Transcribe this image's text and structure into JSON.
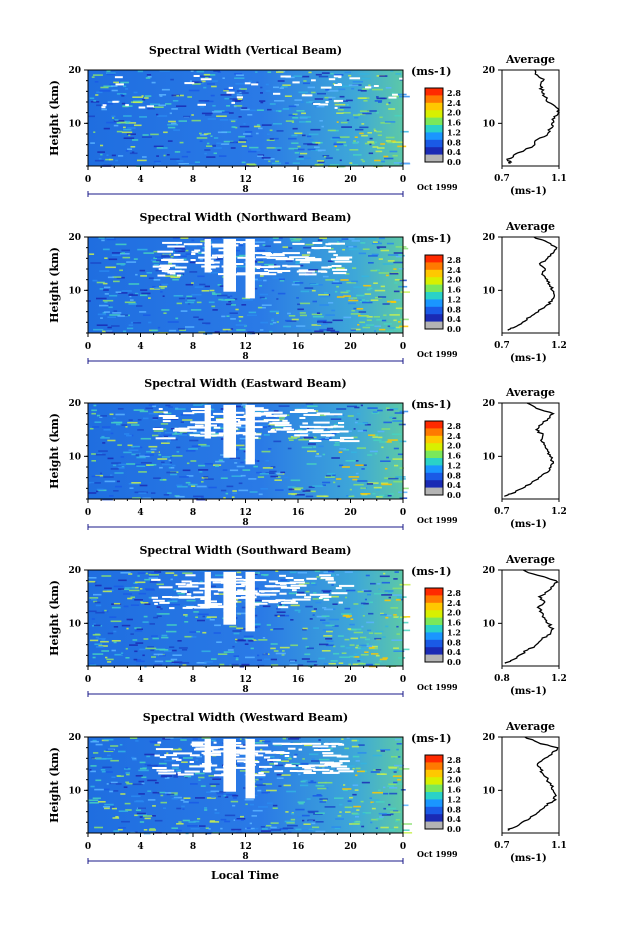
{
  "figure": {
    "xlabel": "Local Time",
    "date_label": "Oct 1999",
    "day_label": "8",
    "panels": [
      {
        "title": "Spectral Width (Vertical Beam)"
      },
      {
        "title": "Spectral Width (Northward Beam)"
      },
      {
        "title": "Spectral Width (Eastward Beam)"
      },
      {
        "title": "Spectral Width (Southward Beam)"
      },
      {
        "title": "Spectral Width (Westward Beam)"
      }
    ],
    "colorbar": {
      "unit": "(ms-1)",
      "ticks": [
        "2.8",
        "2.4",
        "2.0",
        "1.6",
        "1.2",
        "0.8",
        "0.4",
        "0.0"
      ],
      "colors": [
        "#ff2a00",
        "#ff7a00",
        "#ffc800",
        "#d8f000",
        "#7ae85a",
        "#2ad2c8",
        "#1a96ff",
        "#1a5ae6",
        "#1a2ab4",
        "#b4b4b4"
      ]
    },
    "avg_title": "Average",
    "avg_unit": "(ms-1)",
    "colors": {
      "background": "#ffffff",
      "axis": "#000000",
      "field_base": "#2a7ae6",
      "accent": "#1a3ab4"
    }
  },
  "chart_data": [
    {
      "type": "heatmap",
      "title": "Spectral Width (Vertical Beam)",
      "xlabel": "",
      "ylabel": "Height (km)",
      "xlim": [
        0,
        24
      ],
      "ylim": [
        2,
        20
      ],
      "xticks": [
        "0",
        "4",
        "8",
        "12",
        "16",
        "20",
        "0"
      ],
      "yticks": [
        "20",
        "10"
      ],
      "value_unit": "ms-1",
      "value_range": [
        0.0,
        3.0
      ],
      "average": {
        "xlim": [
          0.7,
          1.1
        ],
        "xticks": [
          "0.7",
          "1.1"
        ],
        "ylim": [
          2,
          20
        ],
        "height_km": [
          2.5,
          3,
          4,
          5,
          6,
          7,
          8,
          9,
          10,
          11,
          12,
          13,
          14,
          15,
          16,
          17,
          18,
          19,
          20
        ],
        "values": [
          0.76,
          0.74,
          0.78,
          0.86,
          0.93,
          0.95,
          1.02,
          1.04,
          1.05,
          1.07,
          1.1,
          1.08,
          1.02,
          1.0,
          0.98,
          0.97,
          0.99,
          0.95,
          0.93
        ]
      }
    },
    {
      "type": "heatmap",
      "title": "Spectral Width (Northward Beam)",
      "xlabel": "",
      "ylabel": "Height (km)",
      "xlim": [
        0,
        24
      ],
      "ylim": [
        2,
        20
      ],
      "xticks": [
        "0",
        "4",
        "8",
        "12",
        "16",
        "20",
        "0"
      ],
      "yticks": [
        "20",
        "10"
      ],
      "value_unit": "ms-1",
      "value_range": [
        0.0,
        3.0
      ],
      "average": {
        "xlim": [
          0.7,
          1.2
        ],
        "xticks": [
          "0.7",
          "1.2"
        ],
        "ylim": [
          2,
          20
        ],
        "height_km": [
          2.5,
          3,
          4,
          5,
          6,
          7,
          8,
          9,
          10,
          11,
          12,
          13,
          14,
          15,
          16,
          17,
          18,
          19,
          20
        ],
        "values": [
          0.75,
          0.8,
          0.88,
          0.95,
          1.02,
          1.08,
          1.14,
          1.16,
          1.14,
          1.12,
          1.1,
          1.05,
          1.08,
          1.03,
          1.1,
          1.15,
          1.18,
          1.1,
          0.98
        ]
      }
    },
    {
      "type": "heatmap",
      "title": "Spectral Width (Eastward Beam)",
      "xlabel": "",
      "ylabel": "Height (km)",
      "xlim": [
        0,
        24
      ],
      "ylim": [
        2,
        20
      ],
      "xticks": [
        "0",
        "4",
        "8",
        "12",
        "16",
        "20",
        "0"
      ],
      "yticks": [
        "20",
        "10"
      ],
      "value_unit": "ms-1",
      "value_range": [
        0.0,
        3.0
      ],
      "average": {
        "xlim": [
          0.7,
          1.2
        ],
        "xticks": [
          "0.7",
          "1.2"
        ],
        "ylim": [
          2,
          20
        ],
        "height_km": [
          2.5,
          3,
          4,
          5,
          6,
          7,
          8,
          9,
          10,
          11,
          12,
          13,
          14,
          15,
          16,
          17,
          18,
          19,
          20
        ],
        "values": [
          0.72,
          0.78,
          0.88,
          0.96,
          1.02,
          1.1,
          1.13,
          1.15,
          1.12,
          1.1,
          1.08,
          1.04,
          1.06,
          1.0,
          1.05,
          1.1,
          1.15,
          1.0,
          0.92
        ]
      }
    },
    {
      "type": "heatmap",
      "title": "Spectral Width (Southward Beam)",
      "xlabel": "",
      "ylabel": "Height (km)",
      "xlim": [
        0,
        24
      ],
      "ylim": [
        2,
        20
      ],
      "xticks": [
        "0",
        "4",
        "8",
        "12",
        "16",
        "20",
        "0"
      ],
      "yticks": [
        "20",
        "10"
      ],
      "value_unit": "ms-1",
      "value_range": [
        0.0,
        3.0
      ],
      "average": {
        "xlim": [
          0.8,
          1.2
        ],
        "xticks": [
          "0.8",
          "1.2"
        ],
        "ylim": [
          2,
          20
        ],
        "height_km": [
          2.5,
          3,
          4,
          5,
          6,
          7,
          8,
          9,
          10,
          11,
          12,
          13,
          14,
          15,
          16,
          17,
          18,
          19,
          20
        ],
        "values": [
          0.82,
          0.86,
          0.92,
          0.98,
          1.04,
          1.08,
          1.14,
          1.16,
          1.12,
          1.1,
          1.08,
          1.05,
          1.1,
          1.06,
          1.12,
          1.16,
          1.18,
          1.05,
          0.95
        ]
      }
    },
    {
      "type": "heatmap",
      "title": "Spectral Width (Westward Beam)",
      "xlabel": "Local Time",
      "ylabel": "Height (km)",
      "xlim": [
        0,
        24
      ],
      "ylim": [
        2,
        20
      ],
      "xticks": [
        "0",
        "4",
        "8",
        "12",
        "16",
        "20",
        "0"
      ],
      "yticks": [
        "20",
        "10"
      ],
      "value_unit": "ms-1",
      "value_range": [
        0.0,
        3.0
      ],
      "average": {
        "xlim": [
          0.7,
          1.1
        ],
        "xticks": [
          "0.7",
          "1.1"
        ],
        "ylim": [
          2,
          20
        ],
        "height_km": [
          2.5,
          3,
          4,
          5,
          6,
          7,
          8,
          9,
          10,
          11,
          12,
          13,
          14,
          15,
          16,
          17,
          18,
          19,
          20
        ],
        "values": [
          0.74,
          0.78,
          0.84,
          0.9,
          0.96,
          1.0,
          1.06,
          1.08,
          1.06,
          1.04,
          1.02,
          0.99,
          0.97,
          0.95,
          1.0,
          1.05,
          1.09,
          0.95,
          0.86
        ]
      }
    }
  ]
}
